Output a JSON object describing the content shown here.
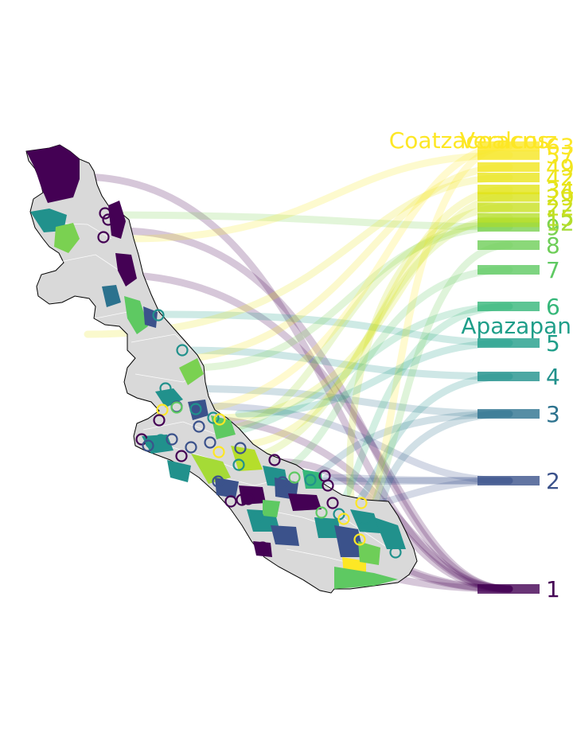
{
  "rank_labels": [
    {
      "text": "1",
      "rank": 1,
      "color": "#440154"
    },
    {
      "text": "2",
      "rank": 2,
      "color": "#3b528b"
    },
    {
      "text": "3",
      "rank": 3,
      "color": "#2c728e"
    },
    {
      "text": "4",
      "rank": 4,
      "color": "#21918c"
    },
    {
      "text": "5",
      "rank": 5,
      "color": "#1f9e89"
    },
    {
      "text": "Apazapan",
      "rank": 5.35,
      "color": "#1f9e89"
    },
    {
      "text": "6",
      "rank": 6,
      "color": "#35b779"
    },
    {
      "text": "7",
      "rank": 7,
      "color": "#5ec962"
    },
    {
      "text": "8",
      "rank": 8,
      "color": "#6ece58"
    },
    {
      "text": "9",
      "rank": 9,
      "color": "#7ad151"
    },
    {
      "text": "12",
      "rank": 12,
      "color": "#a5db36"
    },
    {
      "text": "15",
      "rank": 15,
      "color": "#b5de2b"
    },
    {
      "text": "22",
      "rank": 22,
      "color": "#c8e020"
    },
    {
      "text": "29",
      "rank": 29,
      "color": "#d8e219"
    },
    {
      "text": "34",
      "rank": 34,
      "color": "#e2e418"
    },
    {
      "text": "42",
      "rank": 42,
      "color": "#eae51a"
    },
    {
      "text": "49",
      "rank": 49,
      "color": "#f1e51d"
    },
    {
      "text": "57",
      "rank": 57,
      "color": "#f6e620"
    },
    {
      "text": "63",
      "rank": 63,
      "color": "#fde725"
    },
    {
      "text": "Coatzacoalcos",
      "rank": 66,
      "color": "#fde725"
    },
    {
      "text": "Veracruz",
      "rank": 66,
      "color": "#fde725"
    }
  ],
  "colors": {
    "map_base": "#d9d9d9",
    "map_border": "#ffffff",
    "outline": "#000000"
  }
}
